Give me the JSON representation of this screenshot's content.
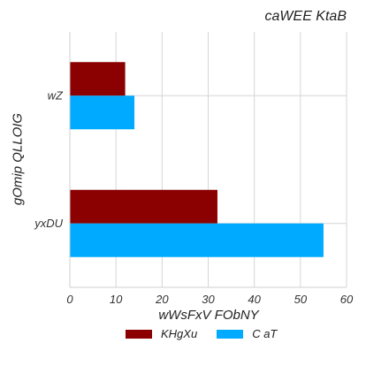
{
  "chart_data": {
    "type": "bar",
    "orientation": "horizontal",
    "title": "caWEE  KtaB",
    "xlabel": "wWsFxV FObNY",
    "ylabel": "gOmip QLLOIG",
    "categories": [
      "wZ",
      "yxDU"
    ],
    "series": [
      {
        "name": "KHgXu",
        "values": [
          12,
          32
        ],
        "color": "#8B0000"
      },
      {
        "name": "C aT",
        "values": [
          14,
          55
        ],
        "color": "#00AAFF"
      }
    ],
    "xlim": [
      0,
      60
    ],
    "xticks": [
      "0",
      "10",
      "20",
      "30",
      "40",
      "50",
      "60"
    ],
    "grid": true,
    "legend_position": "bottom"
  }
}
